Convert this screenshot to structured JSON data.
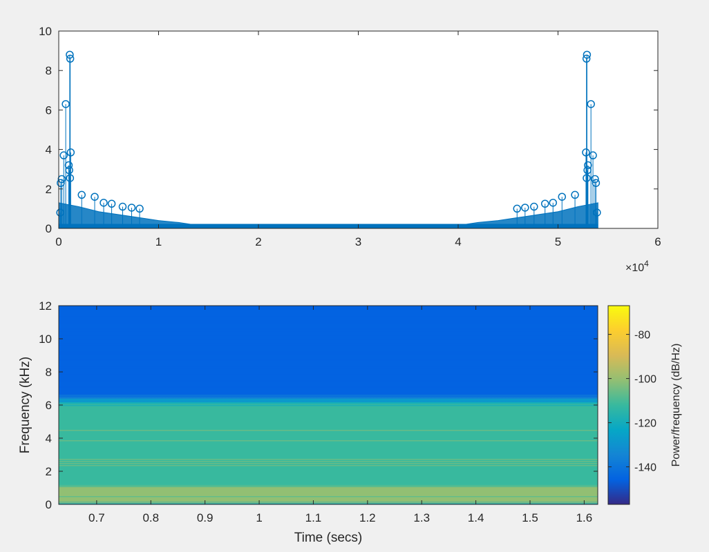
{
  "colors": {
    "stem": "#0072bd",
    "axis": "#262626",
    "figure_bg": "#f0f0f0",
    "axes_bg": "#ffffff",
    "parula": [
      "#352a87",
      "#0363e1",
      "#1485d4",
      "#06a7c6",
      "#38b99e",
      "#92bf73",
      "#d9ba56",
      "#fcce2e",
      "#f9fb0e"
    ]
  },
  "chart_data": [
    {
      "type": "scatter",
      "style": "stem",
      "xlim": [
        0,
        60000
      ],
      "ylim": [
        0,
        10
      ],
      "xticks": [
        "0",
        "1",
        "2",
        "3",
        "4",
        "5",
        "6"
      ],
      "yticks": [
        "0",
        "2",
        "4",
        "6",
        "8",
        "10"
      ],
      "x_exponent_label": "×10",
      "x_exponent_power": "4",
      "n_points": 54000,
      "stems": [
        {
          "x": 700,
          "y": 6.3
        },
        {
          "x": 1100,
          "y": 8.8
        },
        {
          "x": 1150,
          "y": 8.6
        },
        {
          "x": 1200,
          "y": 3.85
        },
        {
          "x": 1000,
          "y": 3.2
        },
        {
          "x": 1050,
          "y": 2.95
        },
        {
          "x": 1130,
          "y": 2.55
        },
        {
          "x": 500,
          "y": 3.7
        },
        {
          "x": 300,
          "y": 2.5
        },
        {
          "x": 200,
          "y": 2.3
        },
        {
          "x": 150,
          "y": 0.8
        },
        {
          "x": 2300,
          "y": 1.7
        },
        {
          "x": 3600,
          "y": 1.6
        },
        {
          "x": 4500,
          "y": 1.3
        },
        {
          "x": 5300,
          "y": 1.25
        },
        {
          "x": 6400,
          "y": 1.1
        },
        {
          "x": 7300,
          "y": 1.05
        },
        {
          "x": 8100,
          "y": 1.0
        },
        {
          "x": 53900,
          "y": 0.8
        },
        {
          "x": 53800,
          "y": 2.3
        },
        {
          "x": 53700,
          "y": 2.5
        },
        {
          "x": 53500,
          "y": 3.7
        },
        {
          "x": 53300,
          "y": 6.3
        },
        {
          "x": 52900,
          "y": 8.8
        },
        {
          "x": 52850,
          "y": 8.6
        },
        {
          "x": 52800,
          "y": 3.85
        },
        {
          "x": 53000,
          "y": 3.2
        },
        {
          "x": 52950,
          "y": 2.95
        },
        {
          "x": 52870,
          "y": 2.55
        },
        {
          "x": 51700,
          "y": 1.7
        },
        {
          "x": 50400,
          "y": 1.6
        },
        {
          "x": 49500,
          "y": 1.3
        },
        {
          "x": 48700,
          "y": 1.25
        },
        {
          "x": 47600,
          "y": 1.1
        },
        {
          "x": 46700,
          "y": 1.05
        },
        {
          "x": 45900,
          "y": 1.0
        }
      ],
      "envelope": [
        {
          "x": 0,
          "y": 1.3
        },
        {
          "x": 2000,
          "y": 1.1
        },
        {
          "x": 4000,
          "y": 0.85
        },
        {
          "x": 6000,
          "y": 0.7
        },
        {
          "x": 8000,
          "y": 0.55
        },
        {
          "x": 10000,
          "y": 0.4
        },
        {
          "x": 12000,
          "y": 0.3
        },
        {
          "x": 14000,
          "y": 0.15
        },
        {
          "x": 14500,
          "y": 0.05
        },
        {
          "x": 39500,
          "y": 0.05
        },
        {
          "x": 40000,
          "y": 0.15
        },
        {
          "x": 42000,
          "y": 0.3
        },
        {
          "x": 44000,
          "y": 0.4
        },
        {
          "x": 46000,
          "y": 0.55
        },
        {
          "x": 48000,
          "y": 0.7
        },
        {
          "x": 50000,
          "y": 0.85
        },
        {
          "x": 52000,
          "y": 1.1
        },
        {
          "x": 54000,
          "y": 1.3
        }
      ]
    },
    {
      "type": "heatmap",
      "xlabel": "Time (secs)",
      "ylabel": "Frequency (kHz)",
      "xlim": [
        0.63,
        1.625
      ],
      "ylim": [
        0,
        12
      ],
      "xticks": [
        0.7,
        0.8,
        0.9,
        1,
        1.1,
        1.2,
        1.3,
        1.4,
        1.5,
        1.6
      ],
      "xtick_labels": [
        "0.7",
        "0.8",
        "0.9",
        "1",
        "1.1",
        "1.2",
        "1.3",
        "1.4",
        "1.5",
        "1.6"
      ],
      "yticks": [
        0,
        2,
        4,
        6,
        8,
        10,
        12
      ],
      "ytick_labels": [
        "0",
        "2",
        "4",
        "6",
        "8",
        "10",
        "12"
      ],
      "color_range": [
        -157,
        -67
      ],
      "colorbar_label": "Power/frequency (dB/Hz)",
      "colorbar_ticks": [
        -80,
        -100,
        -120,
        -140
      ],
      "colorbar_tick_labels": [
        "-80",
        "-100",
        "-120",
        "-140"
      ],
      "frequency_profile": [
        {
          "f": 0,
          "db": -118
        },
        {
          "f": 0.1,
          "db": -100
        },
        {
          "f": 0.5,
          "db": -105
        },
        {
          "f": 1.5,
          "db": -107
        },
        {
          "f": 3.0,
          "db": -109
        },
        {
          "f": 4.5,
          "db": -111
        },
        {
          "f": 5.8,
          "db": -113
        },
        {
          "f": 6.0,
          "db": -117
        },
        {
          "f": 6.2,
          "db": -124
        },
        {
          "f": 6.4,
          "db": -133
        },
        {
          "f": 6.6,
          "db": -141
        },
        {
          "f": 7.0,
          "db": -145
        },
        {
          "f": 9.0,
          "db": -146
        },
        {
          "f": 12.0,
          "db": -147
        }
      ]
    }
  ]
}
